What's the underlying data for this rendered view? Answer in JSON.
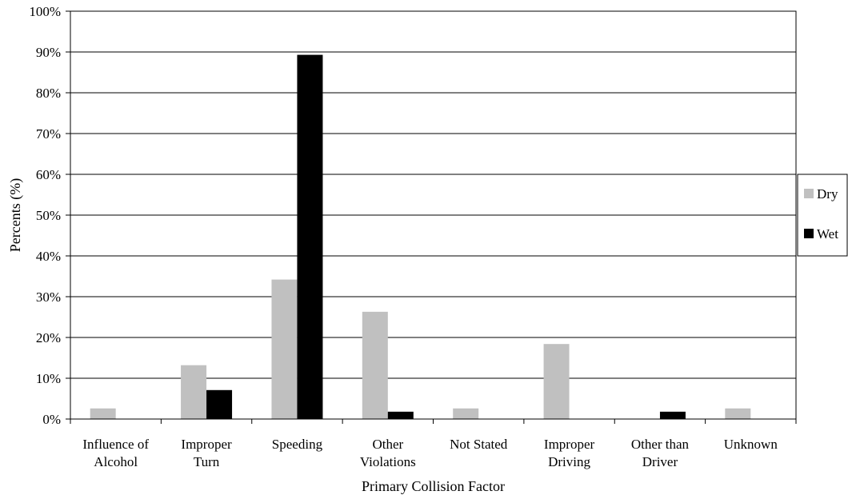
{
  "chart_data": {
    "type": "bar",
    "title": "",
    "xlabel": "Primary Collision Factor",
    "ylabel": "Percents (%)",
    "ylim": [
      0,
      100
    ],
    "ytick_step": 10,
    "ytick_labels": [
      "0%",
      "10%",
      "20%",
      "30%",
      "40%",
      "50%",
      "60%",
      "70%",
      "80%",
      "90%",
      "100%"
    ],
    "grid": true,
    "legend_position": "right",
    "categories": [
      [
        "Influence of",
        "Alcohol"
      ],
      [
        "Improper",
        "Turn"
      ],
      [
        "Speeding"
      ],
      [
        "Other",
        "Violations"
      ],
      [
        "Not Stated"
      ],
      [
        "Improper",
        "Driving"
      ],
      [
        "Other than",
        "Driver"
      ],
      [
        "Unknown"
      ]
    ],
    "series": [
      {
        "name": "Dry",
        "color": "#c0c0c0",
        "values": [
          2.6,
          13.2,
          34.2,
          26.3,
          2.6,
          18.4,
          0,
          2.6
        ]
      },
      {
        "name": "Wet",
        "color": "#000000",
        "values": [
          0,
          7.1,
          89.3,
          1.8,
          0,
          0,
          1.8,
          0
        ]
      }
    ]
  }
}
